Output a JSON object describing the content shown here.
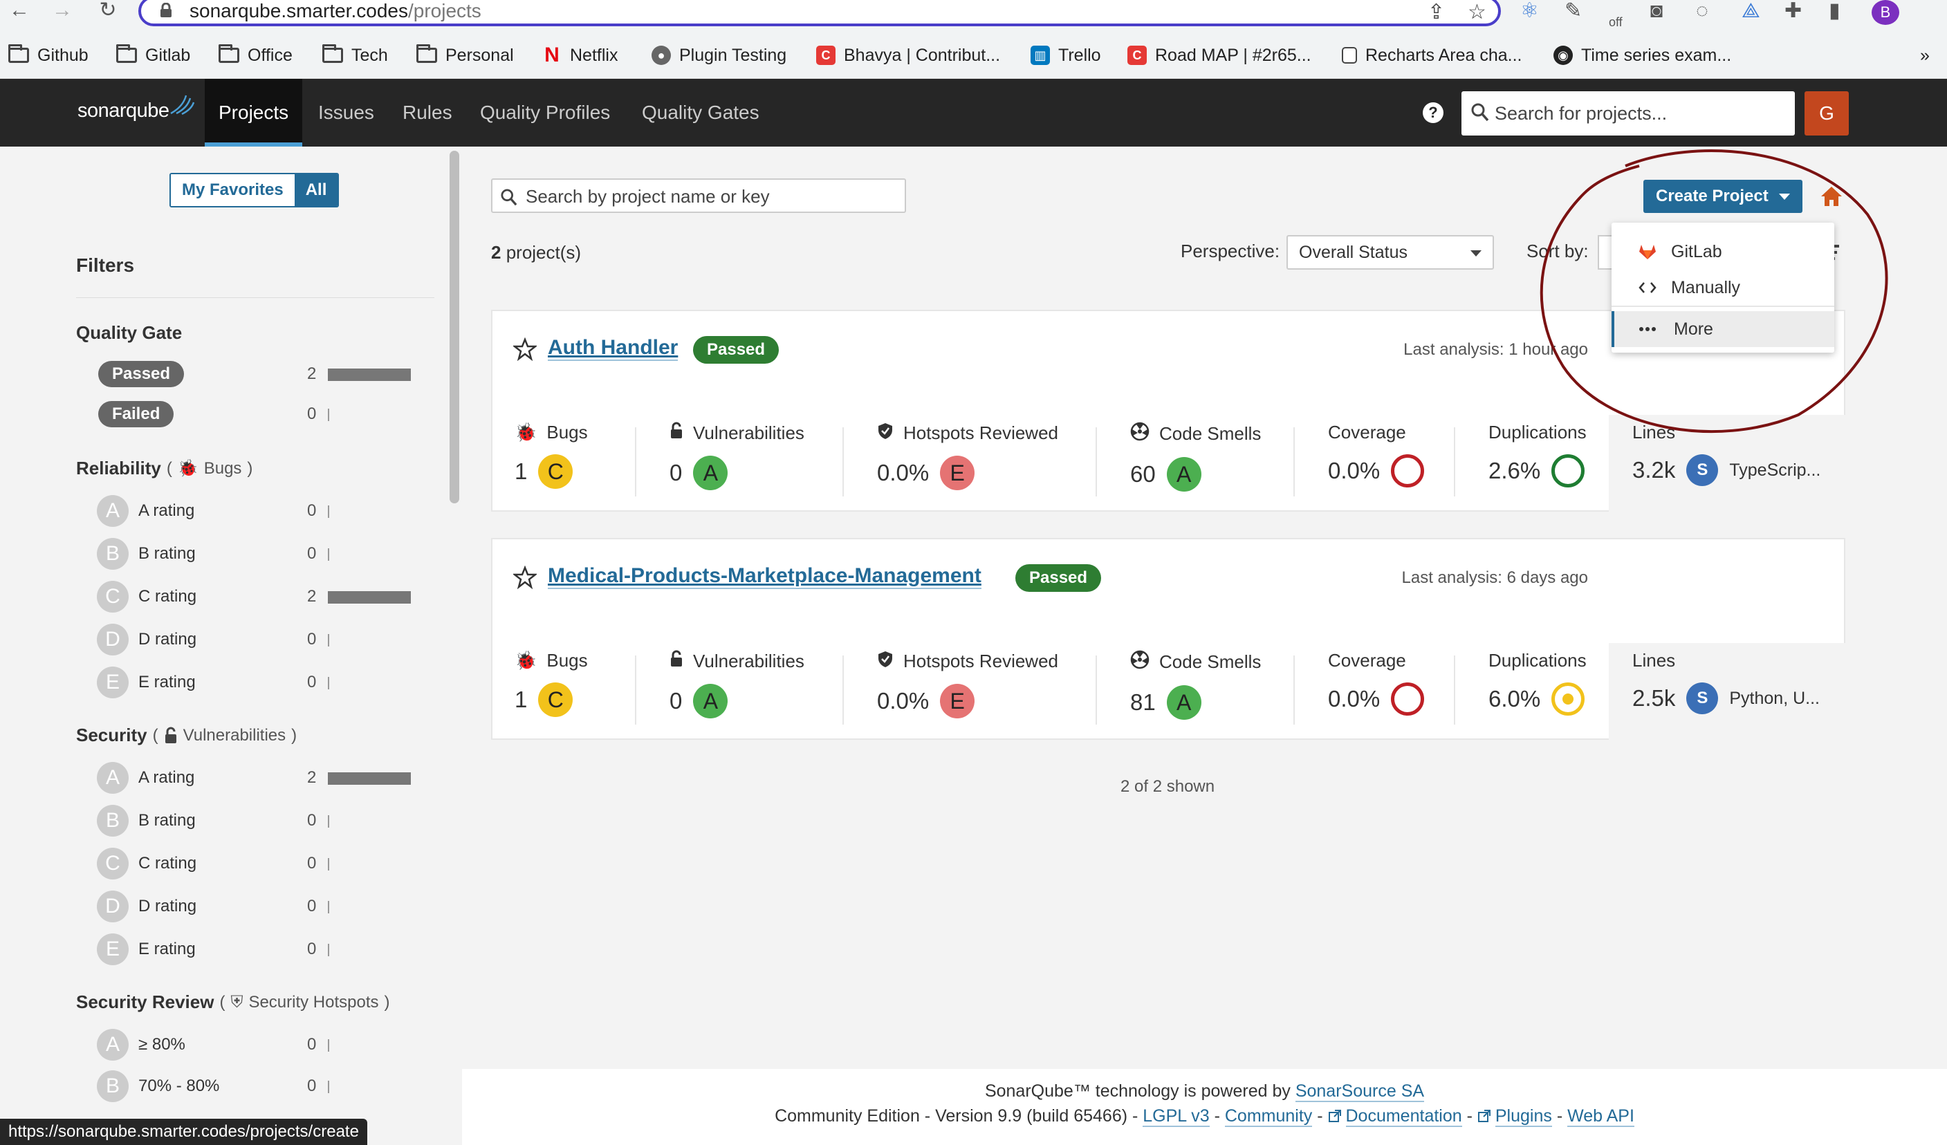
{
  "browser": {
    "url_host": "sonarqube.smarter.codes",
    "url_path": "/projects",
    "profile_initial": "B",
    "bookmarks": [
      {
        "label": "Github",
        "icon": "folder-icon"
      },
      {
        "label": "Gitlab",
        "icon": "folder-icon"
      },
      {
        "label": "Office",
        "icon": "folder-icon"
      },
      {
        "label": "Tech",
        "icon": "folder-icon"
      },
      {
        "label": "Personal",
        "icon": "folder-icon"
      },
      {
        "label": "Netflix",
        "icon": "netflix-icon"
      },
      {
        "label": "Plugin Testing",
        "icon": "globe-icon"
      },
      {
        "label": "Bhavya | Contribut...",
        "icon": "site-icon"
      },
      {
        "label": "Trello",
        "icon": "trello-icon"
      },
      {
        "label": "Road MAP | #2r65...",
        "icon": "site-icon"
      },
      {
        "label": "Recharts Area cha...",
        "icon": "page-icon"
      },
      {
        "label": "Time series exam...",
        "icon": "github-icon"
      }
    ],
    "bookmarks_overflow": "»",
    "status_url": "https://sonarqube.smarter.codes/projects/create",
    "ext_off_label": "off"
  },
  "header": {
    "logo_text": "sonarqube",
    "nav": [
      "Projects",
      "Issues",
      "Rules",
      "Quality Profiles",
      "Quality Gates"
    ],
    "active_nav": "Projects",
    "help": "?",
    "search_placeholder": "Search for projects...",
    "user_initial": "G"
  },
  "sidebar": {
    "my_favorites": "My Favorites",
    "all": "All",
    "filters_title": "Filters",
    "quality_gate": {
      "title": "Quality Gate",
      "items": [
        {
          "label": "Passed",
          "count": "2",
          "fraction": 1.0
        },
        {
          "label": "Failed",
          "count": "0",
          "fraction": 0
        }
      ]
    },
    "reliability": {
      "title": "Reliability",
      "sub": "Bugs",
      "items": [
        {
          "letter": "A",
          "label": "A rating",
          "count": "0",
          "fraction": 0
        },
        {
          "letter": "B",
          "label": "B rating",
          "count": "0",
          "fraction": 0
        },
        {
          "letter": "C",
          "label": "C rating",
          "count": "2",
          "fraction": 1.0
        },
        {
          "letter": "D",
          "label": "D rating",
          "count": "0",
          "fraction": 0
        },
        {
          "letter": "E",
          "label": "E rating",
          "count": "0",
          "fraction": 0
        }
      ]
    },
    "security": {
      "title": "Security",
      "sub": "Vulnerabilities",
      "items": [
        {
          "letter": "A",
          "label": "A rating",
          "count": "2",
          "fraction": 1.0
        },
        {
          "letter": "B",
          "label": "B rating",
          "count": "0",
          "fraction": 0
        },
        {
          "letter": "C",
          "label": "C rating",
          "count": "0",
          "fraction": 0
        },
        {
          "letter": "D",
          "label": "D rating",
          "count": "0",
          "fraction": 0
        },
        {
          "letter": "E",
          "label": "E rating",
          "count": "0",
          "fraction": 0
        }
      ]
    },
    "security_review": {
      "title": "Security Review",
      "sub": "Security Hotspots",
      "items": [
        {
          "letter": "A",
          "label": "≥ 80%",
          "count": "0",
          "fraction": 0
        },
        {
          "letter": "B",
          "label": "70% - 80%",
          "count": "0",
          "fraction": 0
        }
      ]
    }
  },
  "main": {
    "search_placeholder": "Search by project name or key",
    "project_count": "2",
    "project_count_suffix": "project(s)",
    "perspective_label": "Perspective:",
    "perspective_value": "Overall Status",
    "sort_label": "Sort by:",
    "create_project": "Create Project",
    "dropdown": [
      {
        "label": "GitLab",
        "icon": "gitlab-icon"
      },
      {
        "label": "Manually",
        "icon": "code-icon"
      },
      {
        "label": "More",
        "icon": "more-icon"
      }
    ],
    "shown": "2 of 2 shown",
    "projects": [
      {
        "name": "Auth Handler",
        "status": "Passed",
        "analysis": "Last analysis: 1 hour ago",
        "bugs": "1",
        "bugs_rating": "C",
        "vulns": "0",
        "vulns_rating": "A",
        "hotspots": "0.0%",
        "hotspots_rating": "E",
        "smells": "60",
        "smells_rating": "A",
        "coverage": "0.0%",
        "duplications": "2.6%",
        "lines": "3.2k",
        "lang_badge": "S",
        "languages": "TypeScrip..."
      },
      {
        "name": "Medical-Products-Marketplace-Management",
        "status": "Passed",
        "analysis": "Last analysis: 6 days ago",
        "bugs": "1",
        "bugs_rating": "C",
        "vulns": "0",
        "vulns_rating": "A",
        "hotspots": "0.0%",
        "hotspots_rating": "E",
        "smells": "81",
        "smells_rating": "A",
        "coverage": "0.0%",
        "duplications": "6.0%",
        "lines": "2.5k",
        "lang_badge": "S",
        "languages": "Python, U..."
      }
    ],
    "metric_labels": {
      "bugs": "Bugs",
      "vulns": "Vulnerabilities",
      "hotspots": "Hotspots Reviewed",
      "smells": "Code Smells",
      "coverage": "Coverage",
      "duplications": "Duplications",
      "lines": "Lines"
    }
  },
  "footer": {
    "line1_prefix": "SonarQube™ technology is powered by",
    "line1_link": "SonarSource SA",
    "line2_prefix": "Community Edition - Version 9.9 (build 65466) -",
    "links": [
      "LGPL v3",
      "Community",
      "Documentation",
      "Plugins",
      "Web API"
    ]
  },
  "colors": {
    "header_bg": "#262626",
    "link": "#236a97",
    "passed": "#2e7d32",
    "rating_a": "#4caf50",
    "rating_c": "#f2c21b",
    "rating_e": "#e57373",
    "coverage_bad": "#bf2026",
    "annotation": "#7a1212"
  }
}
